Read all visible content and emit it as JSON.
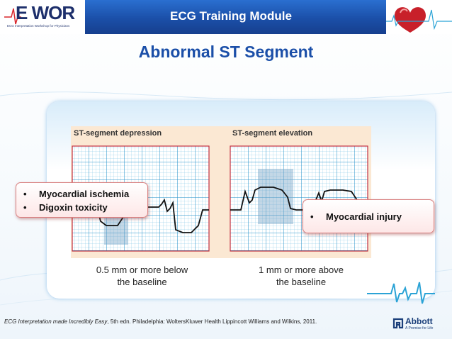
{
  "header": {
    "logo_letters": "E WOR",
    "logo_tagline": "ECG Interpretation Workshop for Physicians",
    "module_title": "ECG Training Module"
  },
  "slide": {
    "title": "Abnormal ST Segment"
  },
  "figure": {
    "left_heading": "ST-segment depression",
    "right_heading": "ST-segment elevation"
  },
  "captions": {
    "left": [
      "0.5 mm or more below",
      "the baseline"
    ],
    "right": [
      "1 mm or more above",
      "the baseline"
    ]
  },
  "callouts": {
    "left_items": [
      "Myocardial ischemia",
      "Digoxin toxicity"
    ],
    "right_items": [
      "Myocardial injury"
    ]
  },
  "footer": {
    "reference_book": "ECG Interpretation made Incredibly Easy",
    "reference_rest": ", 5th edn. Philadelphia: WoltersKluwer Health Lippincott Williams and Wilkins, 2011.",
    "brand_name": "Abbott",
    "brand_tagline": "A Promise for Life"
  },
  "colors": {
    "header_blue": "#1b4fa8",
    "ecg_grid_line": "#2ba3d6",
    "ecg_trace": "#111111",
    "callout_border": "#d98080"
  }
}
